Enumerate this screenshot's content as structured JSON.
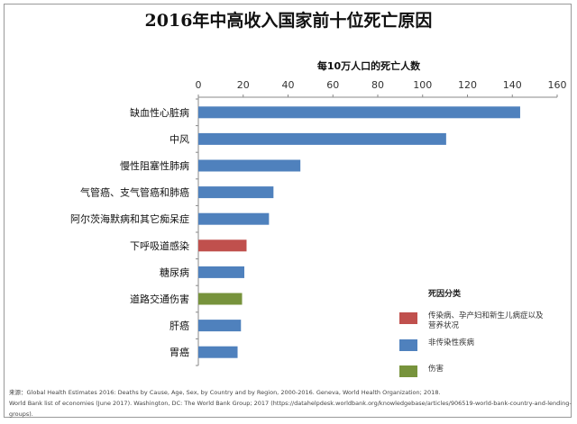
{
  "chart_data": {
    "type": "bar",
    "orientation": "horizontal",
    "title": "2016年中高收入国家前十位死亡原因",
    "xlabel": "每10万人口的死亡人数",
    "xlim": [
      0,
      160
    ],
    "xticks": [
      0,
      20,
      40,
      60,
      80,
      100,
      120,
      140,
      160
    ],
    "grid": false,
    "axis_position": "top",
    "categories": [
      "缺血性心脏病",
      "中风",
      "慢性阻塞性肺病",
      "气管癌、支气管癌和肺癌",
      "阿尔茨海默病和其它痴呆症",
      "下呼吸道感染",
      "糖尿病",
      "道路交通伤害",
      "肝癌",
      "胃癌"
    ],
    "values": [
      143.5,
      110.5,
      45.5,
      33.5,
      31.5,
      21.5,
      20.5,
      19.5,
      19,
      17.5
    ],
    "groups": [
      "ncd",
      "ncd",
      "ncd",
      "ncd",
      "ncd",
      "cd",
      "ncd",
      "inj",
      "ncd",
      "ncd"
    ],
    "legend": {
      "title": "死因分类",
      "placement": "bottom-right",
      "items": [
        {
          "key": "cd",
          "label_line1": "传染病、孕产妇和新生儿病症以及",
          "label_line2": "营养状况",
          "color": "#c0504d"
        },
        {
          "key": "ncd",
          "label_line1": "非传染性疾病",
          "label_line2": "",
          "color": "#4f81bd"
        },
        {
          "key": "inj",
          "label_line1": "伤害",
          "label_line2": "",
          "color": "#77933c"
        }
      ]
    }
  },
  "source": {
    "line1": "来源：Global Health Estimates 2016: Deaths by Cause, Age, Sex, by Country and by Region, 2000-2016. Geneva, World Health Organization; 2018.",
    "line2": "World Bank list of economies (June 2017). Washington, DC: The World Bank Group; 2017 (https://datahelpdesk.worldbank.org/knowledgebase/articles/906519-world-bank-country-and-lending-groups)."
  }
}
